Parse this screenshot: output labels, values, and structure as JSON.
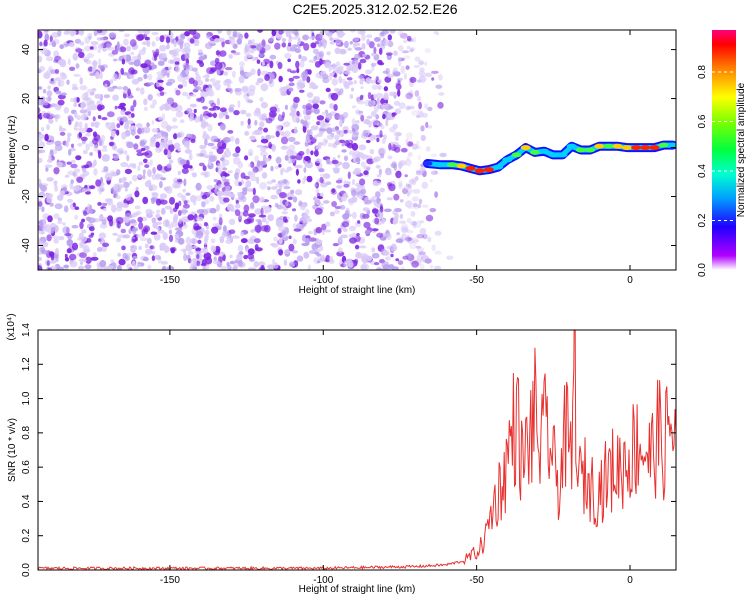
{
  "title": "C2E5.2025.312.02.52.E26",
  "colors": {
    "dot_light": "#d9c9f7",
    "dot_mid": "#b79cf0",
    "dot_dark": "#7a1fe0",
    "snr_line": "#e8312f"
  },
  "chart_data": [
    {
      "type": "heatmap",
      "xlabel": "Height of straight line (km)",
      "ylabel": "Frequency (Hz)",
      "xlim": [
        -193,
        15
      ],
      "ylim": [
        -50,
        48
      ],
      "xticks": [
        -150,
        -100,
        -50,
        0
      ],
      "yticks": [
        -40,
        -20,
        0,
        20,
        40
      ],
      "grid": false,
      "noise_region_x": [
        -193,
        -58
      ],
      "signal_track": {
        "x": [
          -66,
          -62,
          -58,
          -55,
          -52,
          -49,
          -46,
          -43,
          -40,
          -37,
          -34,
          -31,
          -28,
          -25,
          -22,
          -19,
          -16,
          -13,
          -10,
          -7,
          -4,
          -1,
          2,
          5,
          8,
          11,
          14
        ],
        "y": [
          -6.5,
          -7,
          -7,
          -7.5,
          -8.5,
          -9.5,
          -9,
          -8,
          -5,
          -3,
          0,
          -2,
          -1.5,
          -3,
          -3,
          0.5,
          -1,
          -1,
          0.5,
          0.5,
          0.5,
          0,
          0,
          0,
          0,
          1,
          1
        ],
        "amp": [
          0.2,
          0.3,
          0.5,
          0.7,
          0.8,
          0.85,
          0.8,
          0.4,
          0.3,
          0.5,
          0.6,
          0.5,
          0.4,
          0.3,
          0.3,
          0.3,
          0.5,
          0.5,
          0.6,
          0.55,
          0.6,
          0.7,
          0.85,
          0.9,
          0.85,
          0.5,
          0.3
        ]
      },
      "colorbar": {
        "label": "Normalized spectral amplitude",
        "range": [
          0,
          0.97
        ],
        "ticks": [
          0.0,
          0.2,
          0.4,
          0.6,
          0.8
        ]
      }
    },
    {
      "type": "line",
      "xlabel": "Height of straight line (km)",
      "ylabel": "SNR (10 * v/v)",
      "y_multiplier_label": "(x10⁴)",
      "xlim": [
        -193,
        15
      ],
      "ylim": [
        0,
        1.4
      ],
      "xticks": [
        -150,
        -100,
        -50,
        0
      ],
      "yticks": [
        0.0,
        0.2,
        0.4,
        0.6,
        0.8,
        1.0,
        1.2,
        1.4
      ],
      "ytick_labels": [
        "0.0",
        "0.2",
        "0.4",
        "0.6",
        "0.8",
        "1.0",
        "1.2",
        "1.4"
      ],
      "grid": false,
      "series": [
        {
          "x": [
            -193,
            -150,
            -100,
            -70,
            -60,
            -55,
            -52,
            -49,
            -47,
            -45,
            -43,
            -41,
            -39,
            -37,
            -35,
            -33,
            -31,
            -29,
            -27,
            -25,
            -23,
            -21,
            -19,
            -18,
            -17,
            -15,
            -13,
            -11,
            -9,
            -7,
            -5,
            -3,
            -1,
            1,
            3,
            5,
            7,
            9,
            11,
            13,
            15
          ],
          "y": [
            0.01,
            0.01,
            0.01,
            0.02,
            0.03,
            0.05,
            0.08,
            0.12,
            0.2,
            0.35,
            0.45,
            0.55,
            0.75,
            0.9,
            0.6,
            0.75,
            0.9,
            0.7,
            0.85,
            0.6,
            0.5,
            0.8,
            0.6,
            1.4,
            0.5,
            0.55,
            0.5,
            0.45,
            0.5,
            0.55,
            0.6,
            0.6,
            0.65,
            0.7,
            0.75,
            0.7,
            0.65,
            0.8,
            0.7,
            0.85,
            0.8
          ]
        }
      ]
    }
  ]
}
